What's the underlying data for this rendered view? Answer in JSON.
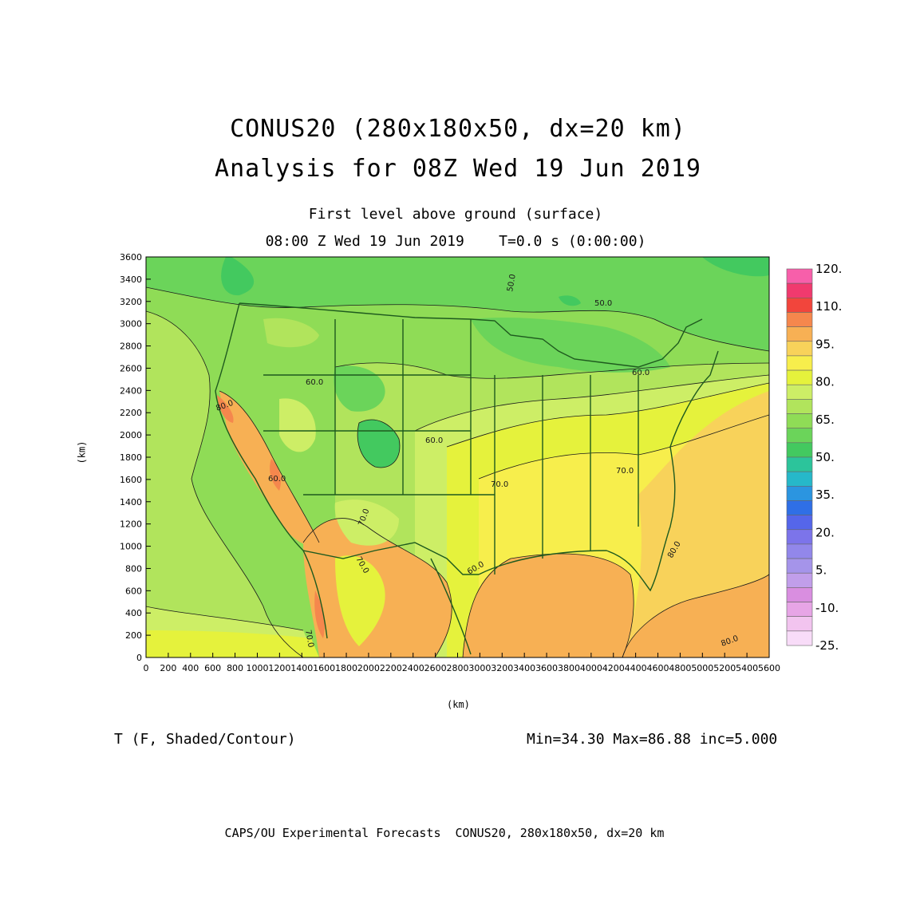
{
  "title": {
    "line1": "CONUS20 (280x180x50, dx=20 km)",
    "line2": "Analysis for 08Z Wed 19 Jun 2019"
  },
  "subtitle": {
    "line1": "First level above ground (surface)",
    "line2": "08:00 Z Wed 19 Jun 2019    T=0.0 s (0:00:00)"
  },
  "axes": {
    "x_label": "(km)",
    "y_label": "(km)",
    "x_ticks": [
      "0",
      "200",
      "400",
      "600",
      "800",
      "1000",
      "1200",
      "1400",
      "1600",
      "1800",
      "2000",
      "2200",
      "2400",
      "2600",
      "2800",
      "3000",
      "3200",
      "3400",
      "3600",
      "3800",
      "4000",
      "4200",
      "4400",
      "4600",
      "4800",
      "5000",
      "5200",
      "5400",
      "5600"
    ],
    "y_ticks": [
      "0",
      "200",
      "400",
      "600",
      "800",
      "1000",
      "1200",
      "1400",
      "1600",
      "1800",
      "2000",
      "2200",
      "2400",
      "2600",
      "2800",
      "3000",
      "3200",
      "3400",
      "3600"
    ],
    "xlim": [
      0,
      5600
    ],
    "ylim": [
      0,
      3600
    ]
  },
  "colorbar": {
    "labels": [
      "120.",
      "110.",
      "95.",
      "80.",
      "65.",
      "50.",
      "35.",
      "20.",
      "5.",
      "-10.",
      "-25."
    ],
    "colors": [
      "#f75faa",
      "#f03a6e",
      "#f2453c",
      "#f5874d",
      "#f7b054",
      "#f8d25a",
      "#f7ee4c",
      "#e5f23c",
      "#cdee66",
      "#b1e45c",
      "#8fdc56",
      "#6bd45a",
      "#43c95f",
      "#2cc49b",
      "#26b8c9",
      "#2b95e0",
      "#2f6fe6",
      "#5566ea",
      "#7c74ea",
      "#9287ea",
      "#a594ea",
      "#c19eea",
      "#d98ee0",
      "#e7a5e6",
      "#f2c4ef",
      "#f8dcf8"
    ]
  },
  "contour_labels": [
    "50.0",
    "50.0",
    "60.0",
    "60.0",
    "60.0",
    "60.0",
    "70.0",
    "70.0",
    "70.0",
    "70.0",
    "70.0",
    "80.0",
    "80.0",
    "80.0",
    "60.0"
  ],
  "field": {
    "variable": "T (F, Shaded/Contour)",
    "stats": "Min=34.30 Max=86.88 inc=5.000"
  },
  "footer": "CAPS/OU Experimental Forecasts  CONUS20, 280x180x50, dx=20 km"
}
